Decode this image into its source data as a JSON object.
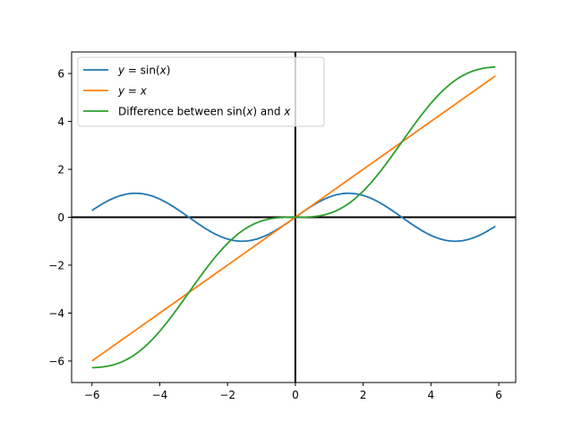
{
  "chart_data": {
    "type": "line",
    "xlim": [
      -6.6,
      6.5
    ],
    "ylim": [
      -6.9,
      6.9
    ],
    "grid": false,
    "legend_placement": "top-left",
    "x_ticks": [
      -6,
      -4,
      -2,
      0,
      2,
      4,
      6
    ],
    "y_ticks": [
      -6,
      -4,
      -2,
      0,
      2,
      4,
      6
    ],
    "x_tick_labels": [
      "−6",
      "−4",
      "−2",
      "0",
      "2",
      "4",
      "6"
    ],
    "y_tick_labels": [
      "−6",
      "−4",
      "−2",
      "0",
      "2",
      "4",
      "6"
    ],
    "x_domain": [
      -6.0,
      5.9
    ],
    "reference_lines": {
      "horizontal_at_y": 0,
      "vertical_at_x": 0,
      "color": "#000000"
    },
    "series": [
      {
        "name": "y = sin(x)",
        "function": "sin(x)",
        "color": "#1f77b4",
        "legend_parts": [
          {
            "t": "y",
            "i": true
          },
          {
            "t": " = sin(",
            "i": false
          },
          {
            "t": "x",
            "i": true
          },
          {
            "t": ")",
            "i": false
          }
        ]
      },
      {
        "name": "y = x",
        "function": "x",
        "color": "#ff7f0e",
        "legend_parts": [
          {
            "t": "y",
            "i": true
          },
          {
            "t": " = ",
            "i": false
          },
          {
            "t": "x",
            "i": true
          }
        ]
      },
      {
        "name": "Difference between sin(x) and x",
        "function": "x - sin(x)",
        "color": "#2ca02c",
        "legend_parts": [
          {
            "t": "Difference between sin(",
            "i": false
          },
          {
            "t": "x",
            "i": true
          },
          {
            "t": ") and ",
            "i": false
          },
          {
            "t": "x",
            "i": true
          }
        ]
      }
    ]
  }
}
